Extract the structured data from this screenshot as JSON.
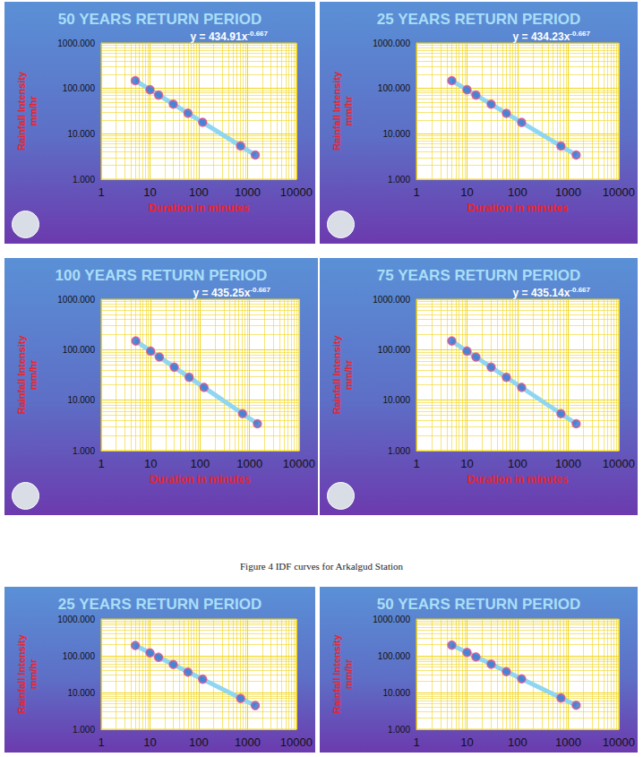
{
  "caption": "Figure 4 IDF curves for Arkalgud Station",
  "chart_data": [
    {
      "type": "scatter",
      "title": "50 YEARS RETURN PERIOD",
      "annotation": {
        "base": "y = 434.91x",
        "superscript": "-0.667"
      },
      "xlabel": "Duration in minutes",
      "ylabel": "Rainfall Intensity mm/hr",
      "log": true,
      "grid": true,
      "xlim": [
        1,
        10000
      ],
      "xticks": [
        1,
        10,
        100,
        1000,
        10000
      ],
      "ylim": [
        1,
        1000
      ],
      "yticks": [
        {
          "value": 1,
          "label": "1.000"
        },
        {
          "value": 10,
          "label": "10.000"
        },
        {
          "value": 100,
          "label": "100.000"
        },
        {
          "value": 1000,
          "label": "1000.000"
        }
      ],
      "series": [
        {
          "type": "scatter",
          "marker": "circle",
          "color": "#2f6fd0",
          "x": [
            5,
            10,
            15,
            30,
            60,
            120,
            720,
            1440
          ],
          "values": [
            148.7,
            93.6,
            71.4,
            45.0,
            28.4,
            17.9,
            5.4,
            3.41
          ]
        },
        {
          "type": "line",
          "line_style": "solid",
          "color": "#8fd6f2",
          "x": [
            5,
            1440
          ],
          "values": [
            148.7,
            3.41
          ]
        }
      ]
    },
    {
      "type": "scatter",
      "title": "25 YEARS RETURN PERIOD",
      "annotation": {
        "base": "y = 434.23x",
        "superscript": "-0.667"
      },
      "xlabel": "Duration in minutes",
      "ylabel": "Rainfall Intensity mm/hr",
      "log": true,
      "grid": true,
      "xlim": [
        1,
        10000
      ],
      "xticks": [
        1,
        10,
        100,
        1000,
        10000
      ],
      "ylim": [
        1,
        1000
      ],
      "yticks": [
        {
          "value": 1,
          "label": "1.000"
        },
        {
          "value": 10,
          "label": "10.000"
        },
        {
          "value": 100,
          "label": "100.000"
        },
        {
          "value": 1000,
          "label": "1000.000"
        }
      ],
      "series": [
        {
          "type": "scatter",
          "marker": "circle",
          "color": "#2f6fd0",
          "x": [
            5,
            10,
            15,
            30,
            60,
            120,
            720,
            1440
          ],
          "values": [
            148.5,
            93.5,
            71.3,
            44.9,
            28.3,
            17.8,
            5.39,
            3.4
          ]
        },
        {
          "type": "line",
          "line_style": "solid",
          "color": "#8fd6f2",
          "x": [
            5,
            1440
          ],
          "values": [
            148.5,
            3.4
          ]
        }
      ]
    },
    {
      "type": "scatter",
      "title": "100 YEARS RETURN PERIOD",
      "annotation": {
        "base": "y = 435.25x",
        "superscript": "-0.667"
      },
      "xlabel": "Duration in minutes",
      "ylabel": "Rainfall Intensity mm/hr",
      "log": true,
      "grid": true,
      "xlim": [
        1,
        10000
      ],
      "xticks": [
        1,
        10,
        100,
        1000,
        10000
      ],
      "ylim": [
        1,
        1000
      ],
      "yticks": [
        {
          "value": 1,
          "label": "1.000"
        },
        {
          "value": 10,
          "label": "10.000"
        },
        {
          "value": 100,
          "label": "100.000"
        },
        {
          "value": 1000,
          "label": "1000.000"
        }
      ],
      "series": [
        {
          "type": "scatter",
          "marker": "circle",
          "color": "#2f6fd0",
          "x": [
            5,
            10,
            15,
            30,
            60,
            120,
            720,
            1440
          ],
          "values": [
            148.8,
            93.7,
            71.5,
            45.0,
            28.4,
            17.9,
            5.41,
            3.41
          ]
        },
        {
          "type": "line",
          "line_style": "solid",
          "color": "#8fd6f2",
          "x": [
            5,
            1440
          ],
          "values": [
            148.8,
            3.41
          ]
        }
      ]
    },
    {
      "type": "scatter",
      "title": "75 YEARS RETURN PERIOD",
      "annotation": {
        "base": "y = 435.14x",
        "superscript": "-0.667"
      },
      "xlabel": "Duration in minutes",
      "ylabel": "Rainfall Intensity mm/hr",
      "log": true,
      "grid": true,
      "xlim": [
        1,
        10000
      ],
      "xticks": [
        1,
        10,
        100,
        1000,
        10000
      ],
      "ylim": [
        1,
        1000
      ],
      "yticks": [
        {
          "value": 1,
          "label": "1.000"
        },
        {
          "value": 10,
          "label": "10.000"
        },
        {
          "value": 100,
          "label": "100.000"
        },
        {
          "value": 1000,
          "label": "1000.000"
        }
      ],
      "series": [
        {
          "type": "scatter",
          "marker": "circle",
          "color": "#2f6fd0",
          "x": [
            5,
            10,
            15,
            30,
            60,
            120,
            720,
            1440
          ],
          "values": [
            148.8,
            93.7,
            71.4,
            45.0,
            28.4,
            17.9,
            5.4,
            3.41
          ]
        },
        {
          "type": "line",
          "line_style": "solid",
          "color": "#8fd6f2",
          "x": [
            5,
            1440
          ],
          "values": [
            148.8,
            3.41
          ]
        }
      ]
    },
    {
      "type": "scatter",
      "title": "25 YEARS RETURN PERIOD",
      "ylabel": "Rainfall Intensity mm/hr",
      "log": true,
      "grid": true,
      "xlim": [
        1,
        10000
      ],
      "xticks": [
        1,
        10,
        100,
        1000,
        10000
      ],
      "ylim": [
        1,
        1000
      ],
      "yticks": [
        {
          "value": 1,
          "label": "1.000"
        },
        {
          "value": 10,
          "label": "10.000"
        },
        {
          "value": 100,
          "label": "100.000"
        },
        {
          "value": 1000,
          "label": "1000.000"
        }
      ],
      "series": [
        {
          "type": "scatter",
          "marker": "circle",
          "color": "#2f6fd0",
          "x": [
            5,
            10,
            15,
            30,
            60,
            120,
            720,
            1440
          ],
          "values": [
            190,
            120,
            91,
            58,
            36,
            23,
            6.9,
            4.4
          ]
        },
        {
          "type": "line",
          "line_style": "solid",
          "color": "#8fd6f2",
          "x": [
            5,
            1440
          ],
          "values": [
            190,
            4.4
          ]
        }
      ]
    },
    {
      "type": "scatter",
      "title": "50 YEARS RETURN PERIOD",
      "ylabel": "Rainfall Intensity mm/hr",
      "log": true,
      "grid": true,
      "xlim": [
        1,
        10000
      ],
      "xticks": [
        1,
        10,
        100,
        1000,
        10000
      ],
      "ylim": [
        1,
        1000
      ],
      "yticks": [
        {
          "value": 1,
          "label": "1.000"
        },
        {
          "value": 10,
          "label": "10.000"
        },
        {
          "value": 100,
          "label": "100.000"
        },
        {
          "value": 1000,
          "label": "1000.000"
        }
      ],
      "series": [
        {
          "type": "scatter",
          "marker": "circle",
          "color": "#2f6fd0",
          "x": [
            5,
            10,
            15,
            30,
            60,
            120,
            720,
            1440
          ],
          "values": [
            195,
            123,
            93,
            59,
            37,
            23.5,
            7.1,
            4.5
          ]
        },
        {
          "type": "line",
          "line_style": "solid",
          "color": "#8fd6f2",
          "x": [
            5,
            1440
          ],
          "values": [
            195,
            4.5
          ]
        }
      ]
    }
  ]
}
